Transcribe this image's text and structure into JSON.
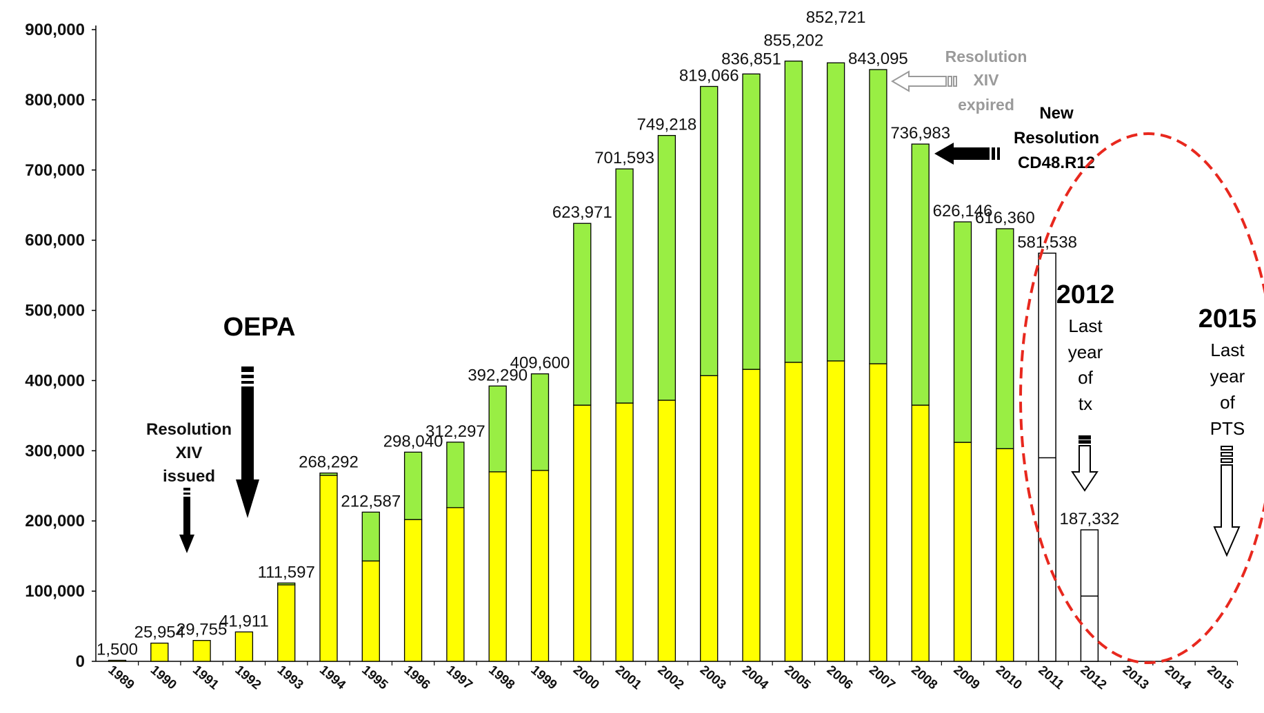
{
  "chart_data": {
    "type": "bar",
    "stacked": true,
    "categories": [
      "1989",
      "1990",
      "1991",
      "1992",
      "1993",
      "1994",
      "1995",
      "1996",
      "1997",
      "1998",
      "1999",
      "2000",
      "2001",
      "2002",
      "2003",
      "2004",
      "2005",
      "2006",
      "2007",
      "2008",
      "2009",
      "2010",
      "2011",
      "2012",
      "2013",
      "2014",
      "2015"
    ],
    "totals": [
      1500,
      25954,
      29755,
      41911,
      111597,
      268292,
      212587,
      298040,
      312297,
      392290,
      409600,
      623971,
      701593,
      749218,
      819066,
      836851,
      855202,
      852721,
      843095,
      736983,
      626146,
      616360,
      581538,
      187332,
      null,
      null,
      null
    ],
    "total_labels": [
      "1,500",
      "25,954",
      "29,755",
      "41,911",
      "111,597",
      "268,292",
      "212,587",
      "298,040",
      "312,297",
      "392,290",
      "409,600",
      "623,971",
      "701,593",
      "749,218",
      "819,066",
      "836,851",
      "855,202",
      "852,721",
      "843,095",
      "736,983",
      "626,146",
      "616,360",
      "581,538",
      "187,332",
      "",
      "",
      ""
    ],
    "series": [
      {
        "color": "#ffff00",
        "values": [
          1500,
          25954,
          29755,
          41911,
          109000,
          265000,
          143000,
          202000,
          219000,
          270000,
          272000,
          365000,
          368000,
          372000,
          407000,
          416000,
          426000,
          428000,
          424000,
          365000,
          312000,
          303000,
          null,
          null,
          null,
          null,
          null
        ]
      },
      {
        "color": "#99ee44",
        "values": [
          0,
          0,
          0,
          0,
          2597,
          3292,
          69587,
          96040,
          93297,
          122290,
          137600,
          258971,
          333593,
          377218,
          412066,
          420851,
          429202,
          424721,
          419095,
          371983,
          314146,
          313360,
          null,
          null,
          null,
          null,
          null
        ]
      },
      {
        "color": "#ffffff",
        "outline": "#000000",
        "values": [
          null,
          null,
          null,
          null,
          null,
          null,
          null,
          null,
          null,
          null,
          null,
          null,
          null,
          null,
          null,
          null,
          null,
          null,
          null,
          null,
          null,
          null,
          581538,
          187332,
          null,
          null,
          null
        ],
        "dividers": [
          null,
          null,
          null,
          null,
          null,
          null,
          null,
          null,
          null,
          null,
          null,
          null,
          null,
          null,
          null,
          null,
          null,
          null,
          null,
          null,
          null,
          null,
          290000,
          93000,
          null,
          null,
          null
        ]
      }
    ],
    "yticks": [
      "0",
      "100,000",
      "200,000",
      "300,000",
      "400,000",
      "500,000",
      "600,000",
      "700,000",
      "800,000",
      "900,000"
    ],
    "ylim": [
      0,
      900000
    ],
    "grid": false,
    "title": "",
    "xlabel": "",
    "ylabel": ""
  },
  "annotations": {
    "oepa": "OEPA",
    "res_issued": [
      "Resolution",
      "XIV",
      "issued"
    ],
    "res_expired": [
      "Resolution",
      "XIV",
      "expired"
    ],
    "new_res": [
      "New",
      "Resolution",
      "CD48.R12"
    ],
    "y2012": {
      "year": "2012",
      "lines": [
        "Last",
        "year",
        "of",
        "tx"
      ]
    },
    "y2015": {
      "year": "2015",
      "lines": [
        "Last",
        "year",
        "of",
        "PTS"
      ]
    },
    "accent_color": "#e8281e",
    "expired_color": "#9a9a9a"
  }
}
